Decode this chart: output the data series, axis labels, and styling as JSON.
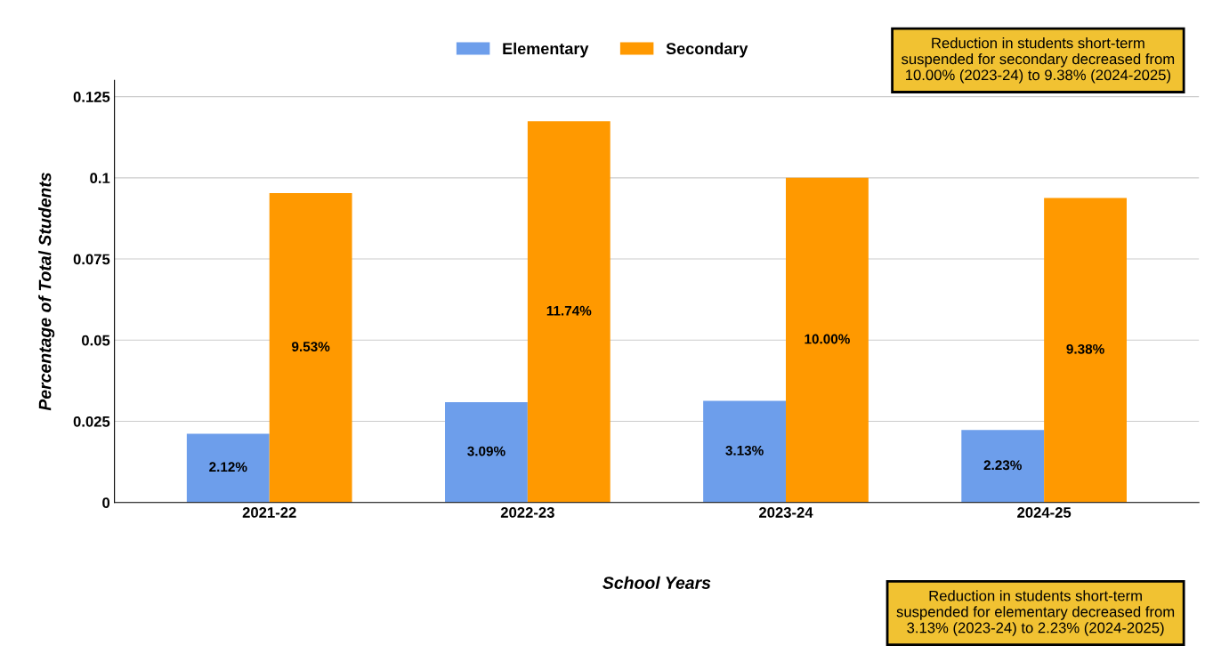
{
  "chart_data": {
    "type": "bar",
    "categories": [
      "2021-22",
      "2022-23",
      "2023-24",
      "2024-25"
    ],
    "series": [
      {
        "name": "Elementary",
        "color": "#6d9eeb",
        "values": [
          0.0212,
          0.0309,
          0.0313,
          0.0223
        ],
        "value_labels": [
          "2.12%",
          "3.09%",
          "3.13%",
          "2.23%"
        ]
      },
      {
        "name": "Secondary",
        "color": "#ff9900",
        "values": [
          0.0953,
          0.1174,
          0.1,
          0.0938
        ],
        "value_labels": [
          "9.53%",
          "11.74%",
          "10.00%",
          "9.38%"
        ]
      }
    ],
    "xlabel": "School Years",
    "ylabel": "Percentage of Total Students",
    "ylim": [
      0,
      0.13
    ],
    "yticks": [
      0,
      0.025,
      0.05,
      0.075,
      0.1,
      0.125
    ],
    "grid": "y",
    "legend": "top",
    "annotations": [
      "Reduction in students short-term suspended for secondary decreased from 10.00% (2023-24) to 9.38% (2024-2025)",
      "Reduction in students short-term suspended for elementary decreased from 3.13% (2023-24) to 2.23% (2024-2025)"
    ]
  }
}
